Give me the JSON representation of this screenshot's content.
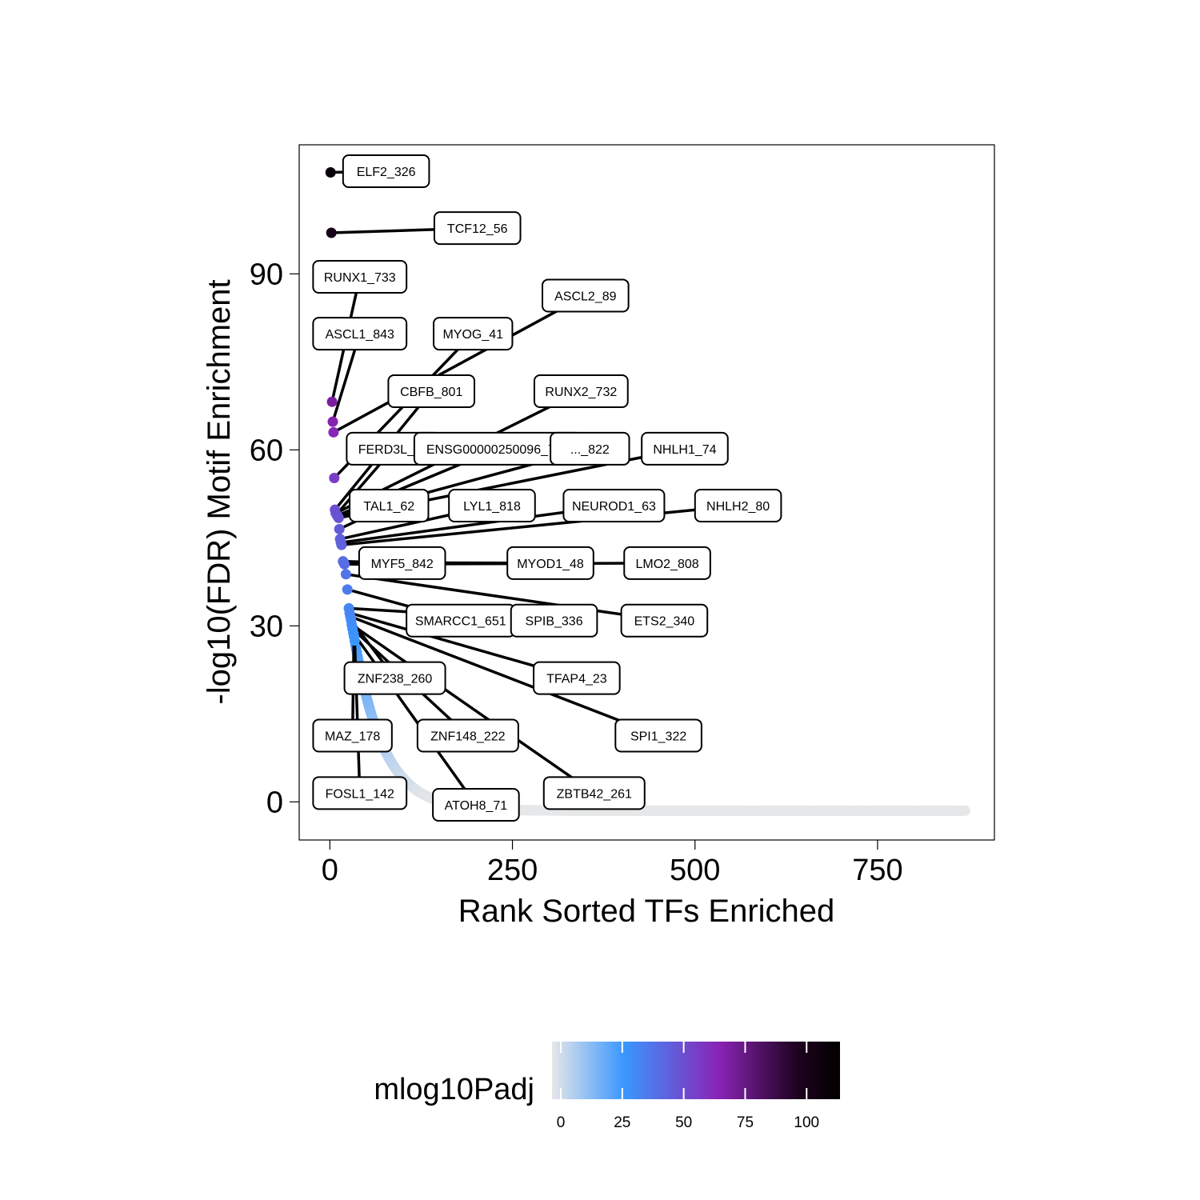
{
  "chart_data": {
    "type": "scatter",
    "xlabel": "Rank Sorted TFs Enriched",
    "ylabel": "-log10(FDR) Motif Enrichment",
    "xlim": [
      -42,
      910
    ],
    "ylim": [
      -6.5,
      112
    ],
    "x_ticks": [
      0,
      250,
      500,
      750
    ],
    "y_ticks": [
      0,
      30,
      60,
      90
    ],
    "grid": false,
    "color_scale": {
      "name": "mlog10Padj",
      "range": [
        0,
        110
      ],
      "ticks": [
        0,
        25,
        50,
        75,
        100
      ],
      "colors": [
        "#e6e7e8",
        "#3a97ff",
        "#8a23b5",
        "#1f0320",
        "#000000"
      ],
      "stops": [
        0,
        0.25,
        0.58,
        0.85,
        1.0
      ]
    },
    "total_tfs": 870,
    "highlighted": [
      {
        "rank": 1,
        "value": 107.3,
        "label": "ELF2_326"
      },
      {
        "rank": 2,
        "value": 97.0,
        "label": "TCF12_56"
      },
      {
        "rank": 3,
        "value": 68.2,
        "label": "RUNX1_733"
      },
      {
        "rank": 4,
        "value": 64.8,
        "label": "ASCL1_843"
      },
      {
        "rank": 5,
        "value": 63.0,
        "label": "ASCL2_89"
      },
      {
        "rank": 6,
        "value": 55.2,
        "label": "MYOG_41"
      },
      {
        "rank": 7,
        "value": 49.8,
        "label": "CBFB_801"
      },
      {
        "rank": 8,
        "value": 49.2,
        "label": "RUNX2_732"
      },
      {
        "rank": 9,
        "value": 49.0,
        "label": "FERD3L_58"
      },
      {
        "rank": 10,
        "value": 48.8,
        "label": "ENSG00000250096_734"
      },
      {
        "rank": 11,
        "value": 48.6,
        "label": "..._822"
      },
      {
        "rank": 12,
        "value": 48.4,
        "label": "NHLH1_74"
      },
      {
        "rank": 13,
        "value": 46.5,
        "label": "TAL1_62"
      },
      {
        "rank": 14,
        "value": 44.8,
        "label": "LYL1_818"
      },
      {
        "rank": 15,
        "value": 44.2,
        "label": "NEUROD1_63"
      },
      {
        "rank": 16,
        "value": 43.8,
        "label": "NHLH2_80"
      },
      {
        "rank": 18,
        "value": 41.0,
        "label": "MYF5_842"
      },
      {
        "rank": 19,
        "value": 40.8,
        "label": "MYOD1_48"
      },
      {
        "rank": 20,
        "value": 40.5,
        "label": "LMO2_808"
      },
      {
        "rank": 22,
        "value": 38.8,
        "label": "ETS2_340"
      },
      {
        "rank": 24,
        "value": 36.2,
        "label": "SMARCC1_651"
      },
      {
        "rank": 26,
        "value": 33.0,
        "label": "SPIB_336"
      },
      {
        "rank": 27,
        "value": 32.2,
        "label": "TFAP4_23"
      },
      {
        "rank": 28,
        "value": 31.6,
        "label": "SPI1_322"
      },
      {
        "rank": 29,
        "value": 31.0,
        "label": "ZNF238_260"
      },
      {
        "rank": 30,
        "value": 30.2,
        "label": "ZBTB42_261"
      },
      {
        "rank": 31,
        "value": 29.5,
        "label": "ZNF148_222"
      },
      {
        "rank": 32,
        "value": 28.8,
        "label": "ATOH8_71"
      },
      {
        "rank": 33,
        "value": 28.2,
        "label": "MAZ_178"
      },
      {
        "rank": 34,
        "value": 27.5,
        "label": "FOSL1_142"
      }
    ],
    "label_positions": [
      {
        "label": "ELF2_326",
        "x": 77,
        "y": 107.5
      },
      {
        "label": "TCF12_56",
        "x": 202,
        "y": 97.8
      },
      {
        "label": "RUNX1_733",
        "x": 41,
        "y": 89.5
      },
      {
        "label": "ASCL1_843",
        "x": 41,
        "y": 79.8
      },
      {
        "label": "ASCL2_89",
        "x": 350,
        "y": 86.3
      },
      {
        "label": "MYOG_41",
        "x": 196,
        "y": 79.8
      },
      {
        "label": "CBFB_801",
        "x": 139,
        "y": 70.0
      },
      {
        "label": "RUNX2_732",
        "x": 344,
        "y": 70.0
      },
      {
        "label": "FERD3L_58",
        "x": 87,
        "y": 60.2
      },
      {
        "label": "ENSG00000250096_734",
        "x": 230,
        "y": 60.2
      },
      {
        "label": "..._822",
        "x": 356,
        "y": 60.2
      },
      {
        "label": "NHLH1_74",
        "x": 486,
        "y": 60.2
      },
      {
        "label": "TAL1_62",
        "x": 81,
        "y": 50.5
      },
      {
        "label": "LYL1_818",
        "x": 222,
        "y": 50.5
      },
      {
        "label": "NEUROD1_63",
        "x": 389,
        "y": 50.5
      },
      {
        "label": "NHLH2_80",
        "x": 559,
        "y": 50.5
      },
      {
        "label": "MYF5_842",
        "x": 99,
        "y": 40.7
      },
      {
        "label": "MYOD1_48",
        "x": 302,
        "y": 40.7
      },
      {
        "label": "LMO2_808",
        "x": 462,
        "y": 40.7
      },
      {
        "label": "ETS2_340",
        "x": 458,
        "y": 30.9
      },
      {
        "label": "SMARCC1_651",
        "x": 179,
        "y": 30.9
      },
      {
        "label": "SPIB_336",
        "x": 307,
        "y": 30.9
      },
      {
        "label": "TFAP4_23",
        "x": 338,
        "y": 21.1
      },
      {
        "label": "SPI1_322",
        "x": 450,
        "y": 11.3
      },
      {
        "label": "ZNF238_260",
        "x": 89,
        "y": 21.1
      },
      {
        "label": "ZBTB42_261",
        "x": 362,
        "y": 1.5
      },
      {
        "label": "ZNF148_222",
        "x": 189,
        "y": 11.3
      },
      {
        "label": "ATOH8_71",
        "x": 200,
        "y": -0.5
      },
      {
        "label": "MAZ_178",
        "x": 31,
        "y": 11.3
      },
      {
        "label": "FOSL1_142",
        "x": 41,
        "y": 1.5
      }
    ]
  }
}
